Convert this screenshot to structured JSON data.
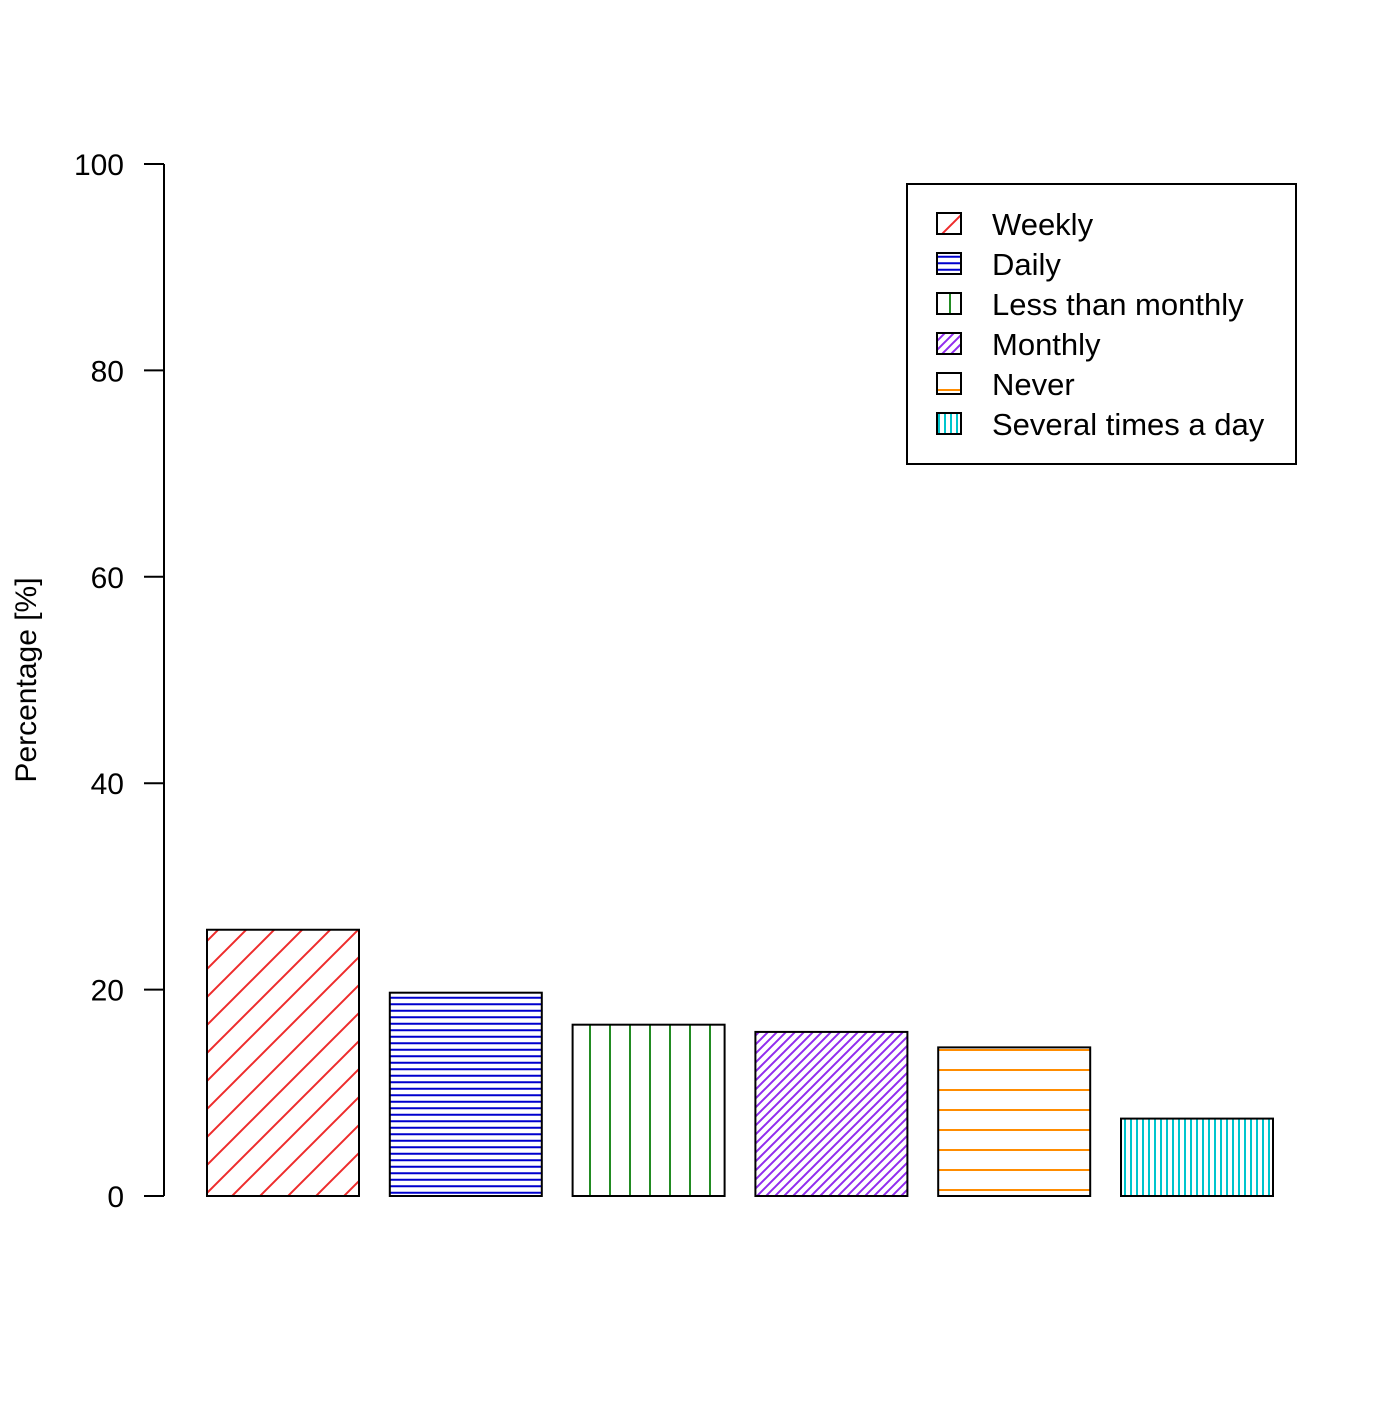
{
  "chart_data": {
    "type": "bar",
    "title": "",
    "xlabel": "",
    "ylabel": "Percentage [%]",
    "ylim": [
      0,
      100
    ],
    "yticks": [
      0,
      20,
      40,
      60,
      80,
      100
    ],
    "grid": false,
    "legend_position": "top-right",
    "categories": [
      "Weekly",
      "Daily",
      "Less than monthly",
      "Monthly",
      "Never",
      "Several times a day"
    ],
    "values": [
      25.8,
      19.7,
      16.6,
      15.9,
      14.4,
      7.5
    ],
    "colors": [
      "#ee2c2c",
      "#0000cd",
      "#228b22",
      "#912cee",
      "#ff8c00",
      "#00c5cd"
    ],
    "hatch": [
      "diagonal-wide",
      "horizontal-dense",
      "vertical-wide",
      "diagonal-dense",
      "horizontal-wide",
      "vertical-dense"
    ]
  }
}
